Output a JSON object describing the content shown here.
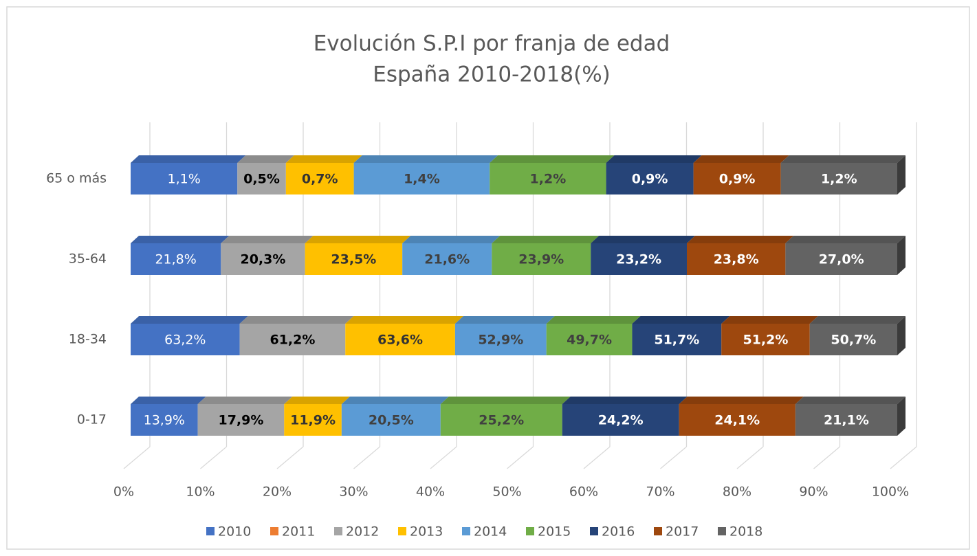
{
  "chart_data": {
    "type": "bar",
    "orientation": "horizontal",
    "stacking": "percent",
    "title": "Evolución S.P.I por franja de edad",
    "subtitle": "España 2010-2018(%)",
    "categories": [
      "0-17",
      "18-34",
      "35-64",
      "65 o más"
    ],
    "series": [
      {
        "name": "2010",
        "color": "#4472c4",
        "label_color": "#ffffff",
        "label_bold": false,
        "values": [
          13.9,
          63.2,
          21.8,
          1.1
        ],
        "value_labels": [
          "13,9%",
          "63,2%",
          "21,8%",
          "1,1%"
        ]
      },
      {
        "name": "2011",
        "color": "#ed7d31",
        "label_color": "#ffffff",
        "label_bold": false,
        "values": [
          null,
          null,
          null,
          null
        ]
      },
      {
        "name": "2012",
        "color": "#a5a5a5",
        "label_color": "#000000",
        "label_bold": true,
        "values": [
          17.9,
          61.2,
          20.3,
          0.5
        ],
        "value_labels": [
          "17,9%",
          "61,2%",
          "20,3%",
          "0,5%"
        ]
      },
      {
        "name": "2013",
        "color": "#ffc000",
        "label_color": "#333333",
        "label_bold": true,
        "values": [
          11.9,
          63.6,
          23.5,
          0.7
        ],
        "value_labels": [
          "11,9%",
          "63,6%",
          "23,5%",
          "0,7%"
        ]
      },
      {
        "name": "2014",
        "color": "#5b9bd5",
        "label_color": "#404040",
        "label_bold": true,
        "values": [
          20.5,
          52.9,
          21.6,
          1.4
        ],
        "value_labels": [
          "20,5%",
          "52,9%",
          "21,6%",
          "1,4%"
        ]
      },
      {
        "name": "2015",
        "color": "#70ad47",
        "label_color": "#404040",
        "label_bold": true,
        "values": [
          25.2,
          49.7,
          23.9,
          1.2
        ],
        "value_labels": [
          "25,2%",
          "49,7%",
          "23,9%",
          "1,2%"
        ]
      },
      {
        "name": "2016",
        "color": "#264478",
        "label_color": "#ffffff",
        "label_bold": true,
        "values": [
          24.2,
          51.7,
          23.2,
          0.9
        ],
        "value_labels": [
          "24,2%",
          "51,7%",
          "23,2%",
          "0,9%"
        ]
      },
      {
        "name": "2017",
        "color": "#9e480e",
        "label_color": "#ffffff",
        "label_bold": true,
        "values": [
          24.1,
          51.2,
          23.8,
          0.9
        ],
        "value_labels": [
          "24,1%",
          "51,2%",
          "23,8%",
          "0,9%"
        ]
      },
      {
        "name": "2018",
        "color": "#636363",
        "label_color": "#ffffff",
        "label_bold": true,
        "values": [
          21.1,
          50.7,
          27.0,
          1.2
        ],
        "value_labels": [
          "21,1%",
          "50,7%",
          "27,0%",
          "1,2%"
        ]
      }
    ],
    "xlim": [
      0,
      100
    ],
    "xticks": [
      {
        "value": 0,
        "label": "0%"
      },
      {
        "value": 10,
        "label": "10%"
      },
      {
        "value": 20,
        "label": "20%"
      },
      {
        "value": 30,
        "label": "30%"
      },
      {
        "value": 40,
        "label": "40%"
      },
      {
        "value": 50,
        "label": "50%"
      },
      {
        "value": 60,
        "label": "60%"
      },
      {
        "value": 70,
        "label": "70%"
      },
      {
        "value": 80,
        "label": "80%"
      },
      {
        "value": 90,
        "label": "90%"
      },
      {
        "value": 100,
        "label": "100%"
      }
    ],
    "grid": true,
    "legend": "bottom"
  }
}
